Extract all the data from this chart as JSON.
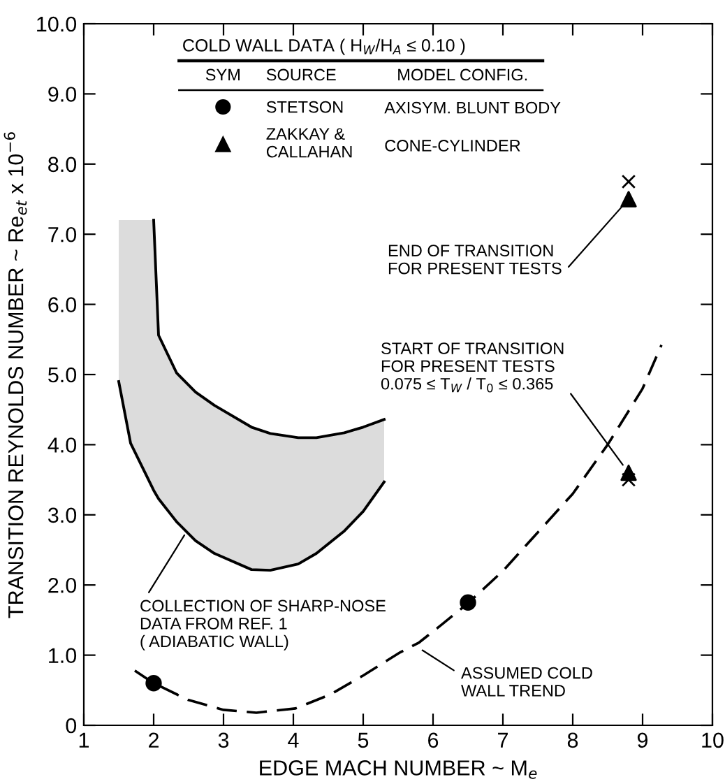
{
  "chart_data": {
    "type": "scatter",
    "xlabel": "EDGE MACH NUMBER ~ M$_{e}$",
    "ylabel": "TRANSITION REYNOLDS NUMBER ~ Re$_{et}$ x 10$^{−6}$",
    "legend_title": "COLD WALL DATA ( H$_{W}$/H$_{A}$ ≤ 0.10 )",
    "legend": "top",
    "xlim": [
      1,
      10
    ],
    "ylim": [
      0,
      10
    ],
    "xticks": [
      1,
      2,
      3,
      4,
      5,
      6,
      7,
      8,
      9,
      10
    ],
    "yticks": [
      0,
      {
        "value": 1,
        "label": "1.0"
      },
      {
        "value": 2,
        "label": "2.0"
      },
      {
        "value": 3,
        "label": "3.0"
      },
      {
        "value": 4,
        "label": "4.0"
      },
      {
        "value": 5,
        "label": "5.0"
      },
      {
        "value": 6,
        "label": "6.0"
      },
      {
        "value": 7,
        "label": "7.0"
      },
      {
        "value": 8,
        "label": "8.0"
      },
      {
        "value": 9,
        "label": "9.0"
      },
      {
        "value": 10,
        "label": "10.0"
      }
    ],
    "grid": false,
    "series": [
      {
        "type": "line",
        "color": "#000000",
        "line_style": "solid",
        "marker": "none",
        "x": [
          2.0,
          2.07,
          2.33,
          2.6,
          2.87,
          3.4,
          3.67,
          4.07,
          4.33,
          4.73,
          5.0,
          5.3
        ],
        "values": [
          7.2,
          5.56,
          5.02,
          4.75,
          4.56,
          4.25,
          4.16,
          4.1,
          4.1,
          4.17,
          4.25,
          4.36
        ]
      },
      {
        "type": "line",
        "color": "#000000",
        "line_style": "solid",
        "marker": "none",
        "x": [
          1.5,
          1.67,
          2.0,
          2.07,
          2.33,
          2.6,
          2.87,
          3.4,
          3.67,
          4.07,
          4.33,
          4.73,
          5.0,
          5.3
        ],
        "values": [
          4.9,
          4.02,
          3.35,
          3.23,
          2.9,
          2.63,
          2.45,
          2.22,
          2.21,
          2.3,
          2.45,
          2.77,
          3.05,
          3.47
        ]
      },
      {
        "type": "line",
        "color": "#000000",
        "line_style": "dashed",
        "marker": "none",
        "x": [
          1.73,
          2.0,
          2.5,
          3.0,
          3.47,
          4.03,
          4.53,
          5.0,
          5.53,
          5.8,
          6.13,
          6.5,
          7.0,
          8.0,
          8.5,
          9.0,
          9.27
        ],
        "values": [
          0.78,
          0.6,
          0.36,
          0.22,
          0.18,
          0.24,
          0.44,
          0.71,
          1.04,
          1.18,
          1.44,
          1.74,
          2.2,
          3.3,
          4.0,
          4.8,
          5.42
        ]
      },
      {
        "name": "STETSON",
        "color": "#000000",
        "marker": "circle",
        "x": [
          2.0,
          6.5
        ],
        "values": [
          0.6,
          1.75
        ]
      },
      {
        "name": "ZAKKAY &\nCALLAHAN",
        "color": "#000000",
        "marker": "triangle",
        "x": [
          8.8,
          8.8
        ],
        "values": [
          7.5,
          3.6
        ]
      },
      {
        "color": "#000000",
        "marker": "cross",
        "x": [
          8.8,
          8.8
        ],
        "values": [
          7.75,
          3.5
        ]
      }
    ],
    "annotations": [
      "SYM",
      "SOURCE",
      "MODEL CONFIG.",
      "AXISYM. BLUNT BODY",
      "CONE-CYLINDER",
      {
        "text": "END OF TRANSITION\nFOR PRESENT TESTS",
        "x": 8.8,
        "y": 7.5
      },
      {
        "text": "START OF TRANSITION\nFOR PRESENT TESTS\n0.075 ≤ T$_{W}$ / T$_{0}$ ≤ 0.365",
        "x": 8.8,
        "y": 3.6
      },
      {
        "text": "ASSUMED COLD\nWALL TREND",
        "x": 5.8,
        "y": 1.1
      },
      {
        "text": "COLLECTION OF SHARP-NOSE\nDATA FROM REF. 1\n( ADIABATIC WALL)",
        "x": 2.44,
        "y": 2.71
      }
    ]
  }
}
